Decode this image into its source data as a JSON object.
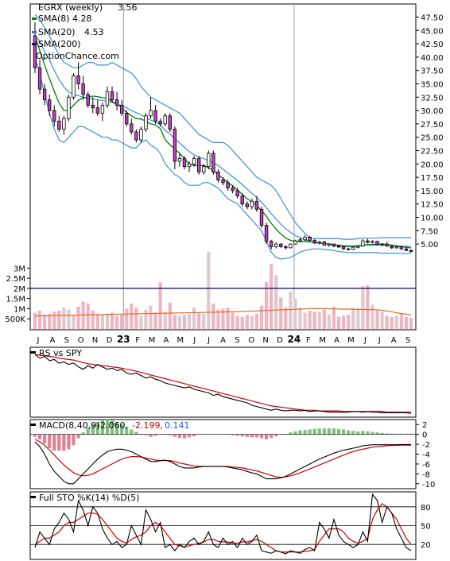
{
  "chart_data": {
    "type": "candlestick",
    "symbol_label": "EGRX (weekly)",
    "last_price": "3.56",
    "watermark": "OptionChance.com",
    "legend": [
      {
        "name": "SMA(8)",
        "value": "4.28",
        "color": "#008000"
      },
      {
        "name": "SMA(20)",
        "value": "4.53",
        "color": "#1e7fd2"
      },
      {
        "name": "SMA(200)",
        "value": "",
        "color": "#000080"
      }
    ],
    "price_axis": {
      "ylim": [
        1.6,
        49.5
      ],
      "ticks": [
        "47.50",
        "45.00",
        "42.50",
        "40.00",
        "37.50",
        "35.00",
        "32.50",
        "30.00",
        "27.50",
        "25.00",
        "22.50",
        "20.00",
        "17.50",
        "15.00",
        "12.50",
        "10.00",
        "7.50",
        "5.00"
      ]
    },
    "volume_axis": {
      "ylim": [
        0,
        3600000
      ],
      "ticks": [
        {
          "label": "3M",
          "value": 3000000
        },
        {
          "label": "2.5M",
          "value": 2500000
        },
        {
          "label": "2M",
          "value": 2000000
        },
        {
          "label": "1.5M",
          "value": 1500000
        },
        {
          "label": "1M",
          "value": 1000000
        },
        {
          "label": "500K",
          "value": 500000
        }
      ]
    },
    "x_axis": {
      "months": [
        "J",
        "A",
        "S",
        "O",
        "N",
        "D",
        "23",
        "F",
        "M",
        "A",
        "M",
        "J",
        "J",
        "A",
        "S",
        "O",
        "N",
        "D",
        "24",
        "F",
        "M",
        "A",
        "M",
        "J",
        "J",
        "A",
        "S"
      ],
      "year_labels": [
        "23",
        "24"
      ]
    },
    "price_series": [
      [
        44.0,
        46.5,
        41.5,
        42.5,
        41.5,
        42.0,
        38.0,
        39.0,
        39.0,
        40.5,
        37.0,
        38.0
      ],
      [
        38.0,
        39.5,
        35.0,
        36.0,
        36.0,
        37.0,
        33.0,
        34.0
      ],
      [
        34.0,
        35.0,
        31.0,
        32.0
      ],
      [
        32.0,
        33.0,
        29.0,
        30.0
      ],
      [
        30.0,
        31.0,
        27.0,
        28.0
      ],
      [
        28.0,
        29.0,
        26.0,
        26.5
      ],
      [
        26.5,
        29.0,
        25.5,
        28.5
      ],
      [
        28.5,
        33.0,
        28.0,
        32.5
      ],
      [
        32.5,
        37.0,
        32.0,
        36.5
      ],
      [
        36.5,
        39.0,
        34.0,
        35.0
      ],
      [
        35.0,
        36.5,
        32.0,
        33.0
      ],
      [
        33.0,
        33.5,
        30.5,
        31.0
      ],
      [
        31.0,
        32.5,
        29.5,
        30.5
      ],
      [
        30.5,
        32.0,
        29.0,
        29.5
      ],
      [
        29.5,
        31.5,
        28.0,
        31.0
      ],
      [
        31.0,
        34.5,
        30.5,
        33.5
      ],
      [
        33.5,
        34.5,
        31.5,
        32.0
      ],
      [
        32.0,
        33.5,
        30.0,
        31.0
      ],
      [
        31.0,
        32.0,
        29.0,
        29.5
      ],
      [
        29.5,
        30.0,
        27.0,
        27.5
      ],
      [
        27.5,
        28.5,
        25.5,
        26.0
      ],
      [
        26.0,
        26.5,
        24.0,
        24.5
      ],
      [
        24.5,
        27.0,
        24.0,
        26.5
      ],
      [
        26.5,
        29.5,
        26.0,
        29.0
      ],
      [
        29.0,
        32.5,
        28.5,
        30.0
      ],
      [
        30.0,
        31.0,
        27.5,
        28.0
      ],
      [
        28.0,
        28.5,
        27.0,
        27.5
      ],
      [
        27.5,
        29.5,
        27.0,
        29.0
      ],
      [
        29.0,
        29.5,
        26.0,
        26.5
      ],
      [
        26.5,
        27.0,
        19.0,
        20.5
      ],
      [
        20.5,
        22.0,
        19.5,
        21.0
      ],
      [
        21.0,
        21.5,
        19.0,
        19.5
      ],
      [
        19.5,
        20.5,
        18.5,
        20.0
      ],
      [
        20.0,
        21.5,
        19.5,
        21.0
      ],
      [
        21.0,
        21.5,
        18.0,
        18.5
      ],
      [
        18.5,
        20.0,
        18.0,
        19.5
      ],
      [
        19.5,
        22.5,
        19.0,
        22.0
      ],
      [
        22.0,
        22.5,
        18.0,
        18.5
      ],
      [
        18.5,
        19.0,
        16.5,
        17.0
      ],
      [
        17.0,
        17.5,
        16.0,
        16.5
      ],
      [
        16.5,
        17.0,
        15.0,
        15.5
      ],
      [
        15.5,
        16.0,
        14.5,
        15.0
      ],
      [
        15.0,
        15.5,
        13.5,
        14.0
      ],
      [
        14.0,
        14.5,
        12.0,
        12.5
      ],
      [
        12.5,
        13.0,
        11.5,
        12.0
      ],
      [
        12.0,
        13.5,
        11.5,
        13.0
      ],
      [
        13.0,
        14.0,
        11.0,
        11.5
      ],
      [
        11.5,
        12.0,
        8.0,
        8.5
      ],
      [
        8.5,
        9.0,
        5.0,
        5.5
      ],
      [
        5.5,
        5.8,
        4.0,
        4.5
      ],
      [
        4.5,
        5.3,
        4.2,
        5.0
      ],
      [
        5.0,
        5.2,
        4.3,
        4.5
      ],
      [
        4.5,
        4.8,
        4.0,
        4.3
      ],
      [
        4.3,
        5.1,
        4.2,
        5.0
      ],
      [
        5.0,
        5.8,
        4.9,
        5.6
      ],
      [
        5.6,
        6.2,
        5.3,
        5.8
      ],
      [
        5.8,
        6.7,
        5.6,
        6.3
      ],
      [
        6.3,
        6.5,
        5.6,
        5.7
      ],
      [
        5.7,
        5.9,
        5.0,
        5.2
      ],
      [
        5.2,
        5.6,
        4.9,
        5.4
      ],
      [
        5.4,
        5.6,
        4.7,
        4.8
      ],
      [
        4.8,
        5.2,
        4.5,
        5.0
      ],
      [
        5.0,
        5.1,
        4.4,
        4.6
      ],
      [
        4.6,
        4.9,
        4.3,
        4.5
      ],
      [
        4.5,
        4.7,
        3.9,
        4.1
      ],
      [
        4.1,
        4.3,
        3.8,
        4.0
      ],
      [
        4.0,
        4.6,
        3.9,
        4.4
      ],
      [
        4.4,
        4.8,
        4.2,
        4.6
      ],
      [
        4.6,
        5.9,
        4.5,
        5.6
      ],
      [
        5.6,
        6.0,
        5.1,
        5.3
      ],
      [
        5.3,
        5.7,
        5.1,
        5.5
      ],
      [
        5.5,
        5.6,
        4.8,
        4.9
      ],
      [
        4.9,
        5.2,
        4.6,
        5.0
      ],
      [
        5.0,
        5.4,
        4.5,
        4.6
      ],
      [
        4.6,
        4.8,
        4.1,
        4.3
      ],
      [
        4.3,
        4.7,
        4.1,
        4.5
      ],
      [
        4.5,
        4.6,
        3.9,
        4.1
      ],
      [
        4.1,
        4.4,
        3.7,
        3.8
      ],
      [
        3.8,
        4.0,
        3.5,
        3.56
      ]
    ],
    "sma8": [
      44.0,
      41.2,
      38.5,
      36.0,
      33.6,
      31.4,
      30.0,
      30.0,
      31.0,
      31.9,
      32.4,
      32.5,
      32.7,
      32.6,
      32.4,
      32.3,
      31.7,
      31.2,
      30.5,
      29.7,
      29.0,
      28.5,
      28.4,
      28.0,
      27.5,
      27.3,
      26.6,
      24.5,
      23.6,
      22.8,
      22.0,
      21.0,
      20.0,
      19.7,
      19.7,
      19.7,
      19.3,
      18.7,
      18.0,
      17.3,
      16.5,
      15.9,
      15.1,
      14.3,
      13.5,
      12.9,
      12.2,
      11.3,
      10.2,
      8.9,
      7.8,
      6.9,
      6.1,
      5.7,
      5.5,
      5.5,
      5.5,
      5.4,
      5.3,
      5.2,
      5.1,
      5.0,
      4.9,
      4.7,
      4.6,
      4.5,
      4.5,
      4.6,
      4.8,
      4.9,
      4.9,
      5.0,
      5.0,
      4.9,
      4.8,
      4.6,
      4.5,
      4.4,
      4.28
    ],
    "sma20": [
      44.0,
      43.0,
      41.0,
      39.5,
      37.5,
      35.8,
      34.4,
      33.5,
      33.0,
      32.8,
      32.5,
      32.3,
      32.2,
      32.0,
      31.9,
      31.7,
      31.5,
      31.2,
      30.9,
      30.5,
      30.0,
      29.6,
      29.2,
      28.7,
      28.2,
      27.9,
      27.3,
      26.3,
      25.6,
      24.7,
      23.9,
      23.1,
      22.3,
      21.7,
      21.3,
      21.0,
      20.6,
      20.2,
      19.7,
      19.0,
      18.3,
      17.6,
      16.9,
      16.1,
      15.3,
      14.5,
      13.7,
      12.8,
      11.8,
      10.7,
      9.7,
      8.7,
      7.9,
      7.2,
      6.6,
      6.2,
      5.8,
      5.5,
      5.3,
      5.2,
      5.1,
      5.0,
      4.9,
      4.8,
      4.7,
      4.7,
      4.7,
      4.7,
      4.8,
      4.8,
      4.8,
      4.8,
      4.8,
      4.8,
      4.8,
      4.7,
      4.6,
      4.6,
      4.53
    ],
    "bb_upper": [
      48.0,
      47.0,
      45.5,
      44.0,
      42.0,
      40.5,
      39.0,
      38.5,
      38.0,
      38.0,
      38.5,
      39.0,
      39.0,
      38.5,
      38.5,
      38.5,
      39.0,
      38.5,
      38.0,
      37.5,
      37.0,
      36.0,
      34.5,
      33.5,
      32.5,
      32.0,
      31.5,
      31.0,
      30.5,
      30.0,
      29.5,
      28.5,
      27.5,
      26.5,
      25.5,
      25.0,
      24.5,
      24.0,
      24.0,
      24.0,
      23.5,
      22.5,
      21.5,
      20.5,
      19.5,
      18.5,
      17.5,
      17.0,
      16.5,
      16.0,
      15.0,
      13.5,
      12.0,
      10.5,
      9.0,
      8.0,
      7.0,
      6.2,
      6.0,
      6.0,
      6.0,
      6.0,
      6.0,
      6.0,
      5.9,
      5.9,
      5.9,
      6.0,
      6.1,
      6.1,
      6.1,
      6.1,
      6.2,
      6.2,
      6.2,
      6.2,
      6.2,
      6.2,
      6.2
    ],
    "bb_lower": [
      40.0,
      37.0,
      33.0,
      29.5,
      26.5,
      24.5,
      24.0,
      25.0,
      26.0,
      27.0,
      27.0,
      26.5,
      26.0,
      25.5,
      25.0,
      25.0,
      24.5,
      24.5,
      24.0,
      23.5,
      23.0,
      23.0,
      24.0,
      24.5,
      23.5,
      23.0,
      22.0,
      20.0,
      19.0,
      18.0,
      17.5,
      16.5,
      16.0,
      16.0,
      16.0,
      16.5,
      16.5,
      16.0,
      15.5,
      14.5,
      13.5,
      13.0,
      12.5,
      11.5,
      10.5,
      9.5,
      8.5,
      7.5,
      5.5,
      3.5,
      2.5,
      2.2,
      2.3,
      2.5,
      3.0,
      3.5,
      3.8,
      4.0,
      4.1,
      4.1,
      4.0,
      3.9,
      3.8,
      3.6,
      3.5,
      3.4,
      3.4,
      3.4,
      3.4,
      3.4,
      3.4,
      3.4,
      3.3,
      3.3,
      3.3,
      3.3,
      3.2,
      3.2,
      3.2
    ],
    "volume": [
      800,
      900,
      700,
      750,
      850,
      900,
      1050,
      950,
      700,
      1100,
      1350,
      1250,
      900,
      750,
      700,
      750,
      800,
      650,
      700,
      1000,
      1250,
      1050,
      650,
      950,
      1150,
      800,
      2300,
      850,
      1300,
      700,
      650,
      700,
      750,
      1050,
      800,
      750,
      3800,
      1250,
      950,
      1000,
      1050,
      800,
      650,
      600,
      700,
      650,
      750,
      1150,
      2300,
      3200,
      2650,
      1550,
      1050,
      1850,
      1500,
      1050,
      800,
      900,
      850,
      850,
      950,
      700,
      1100,
      600,
      650,
      700,
      1050,
      1000,
      2100,
      2150,
      1200,
      900,
      850,
      650,
      600,
      650,
      750,
      600,
      550
    ],
    "volume_unit": 1000,
    "volume_average": [
      640,
      645,
      650,
      655,
      660,
      665,
      670,
      675,
      680,
      685,
      690,
      695,
      700,
      705,
      710,
      715,
      720,
      725,
      730,
      735,
      740,
      745,
      750,
      755,
      760,
      765,
      770,
      775,
      780,
      785,
      790,
      795,
      800,
      805,
      810,
      815,
      820,
      825,
      830,
      835,
      840,
      845,
      850,
      860,
      870,
      880,
      890,
      900,
      910,
      920,
      930,
      940,
      950,
      960,
      970,
      980,
      990,
      1000,
      1000,
      1000,
      1000,
      995,
      990,
      985,
      980,
      975,
      970,
      965,
      960,
      955,
      950,
      940,
      920,
      890,
      850,
      800,
      760,
      730,
      700
    ],
    "ma_line_2m": 2000000,
    "rs_panel": {
      "label": "RS vs SPY",
      "rs": [
        96,
        90,
        93,
        86,
        88,
        82,
        84,
        80,
        82,
        76,
        72,
        78,
        74,
        80,
        76,
        72,
        74,
        70,
        72,
        66,
        64,
        66,
        62,
        58,
        60,
        56,
        54,
        50,
        48,
        46,
        44,
        42,
        44,
        40,
        38,
        36,
        34,
        30,
        32,
        28,
        26,
        24,
        22,
        20,
        18,
        14,
        12,
        10,
        8,
        6,
        8,
        6,
        5,
        6,
        6,
        5,
        6,
        4,
        5,
        5,
        4,
        3,
        3,
        3,
        3,
        3,
        4,
        4,
        3,
        4,
        3,
        3,
        2,
        2,
        2,
        2,
        2,
        2,
        1
      ],
      "ma": [
        96,
        95,
        94,
        93,
        92,
        90,
        89,
        88,
        87,
        85,
        83,
        81,
        80,
        79,
        78,
        77,
        76,
        75,
        74,
        72,
        71,
        69,
        67,
        65,
        63,
        61,
        59,
        57,
        55,
        53,
        51,
        49,
        47,
        45,
        43,
        41,
        39,
        37,
        35,
        33,
        31,
        29,
        27,
        25,
        23,
        21,
        19,
        17,
        15,
        13,
        12,
        11,
        10,
        9,
        8,
        7,
        6,
        6,
        6,
        5,
        5,
        5,
        5,
        5,
        4,
        4,
        4,
        4,
        4,
        4,
        4,
        4,
        4,
        3,
        3,
        3,
        3,
        3,
        3
      ],
      "ylim": [
        0,
        100
      ]
    },
    "macd_panel": {
      "label": "MACD(8,40,9)",
      "macd_value": "-2.060,",
      "signal_value": "-2.199,",
      "hist_value": "0.141",
      "yticks": [
        2,
        0,
        -2,
        -4,
        -6,
        -8,
        -10
      ],
      "ylim": [
        -11,
        3
      ],
      "macd": [
        -1.5,
        -2.5,
        -4.0,
        -6.0,
        -7.5,
        -8.5,
        -9.5,
        -10.0,
        -10.0,
        -9.0,
        -8.0,
        -7.0,
        -6.0,
        -5.0,
        -4.2,
        -3.5,
        -3.2,
        -3.0,
        -3.0,
        -3.2,
        -3.5,
        -4.0,
        -4.5,
        -5.0,
        -5.5,
        -5.5,
        -5.3,
        -5.2,
        -5.5,
        -6.0,
        -6.5,
        -6.8,
        -6.8,
        -6.8,
        -6.6,
        -6.5,
        -6.5,
        -6.5,
        -6.5,
        -6.5,
        -6.6,
        -6.8,
        -7.0,
        -7.2,
        -7.5,
        -7.8,
        -8.0,
        -8.5,
        -9.0,
        -9.0,
        -9.0,
        -8.8,
        -8.5,
        -8.0,
        -7.5,
        -7.0,
        -6.5,
        -6.0,
        -5.5,
        -5.0,
        -4.6,
        -4.2,
        -3.8,
        -3.5,
        -3.2,
        -3.0,
        -2.8,
        -2.6,
        -2.3,
        -2.2,
        -2.1,
        -2.1,
        -2.1,
        -2.1,
        -2.1,
        -2.1,
        -2.06,
        -2.06,
        -2.06
      ],
      "signal": [
        -1.0,
        -1.5,
        -2.2,
        -3.2,
        -4.2,
        -5.2,
        -6.2,
        -7.0,
        -7.8,
        -8.2,
        -8.4,
        -8.3,
        -8.0,
        -7.5,
        -7.0,
        -6.5,
        -6.0,
        -5.5,
        -5.0,
        -4.7,
        -4.5,
        -4.5,
        -4.6,
        -4.8,
        -5.0,
        -5.2,
        -5.3,
        -5.3,
        -5.3,
        -5.5,
        -5.8,
        -6.0,
        -6.2,
        -6.4,
        -6.5,
        -6.5,
        -6.5,
        -6.5,
        -6.5,
        -6.5,
        -6.5,
        -6.6,
        -6.7,
        -6.8,
        -7.0,
        -7.2,
        -7.4,
        -7.7,
        -8.0,
        -8.3,
        -8.6,
        -8.7,
        -8.6,
        -8.4,
        -8.1,
        -7.8,
        -7.4,
        -7.0,
        -6.6,
        -6.2,
        -5.8,
        -5.4,
        -5.0,
        -4.6,
        -4.2,
        -3.8,
        -3.5,
        -3.2,
        -3.0,
        -2.8,
        -2.6,
        -2.5,
        -2.4,
        -2.3,
        -2.25,
        -2.22,
        -2.2,
        -2.2,
        -2.199
      ]
    },
    "sto_panel": {
      "label": "Full STO %K(14) %D(5)",
      "yticks": [
        80,
        50,
        20
      ],
      "ylim": [
        0,
        100
      ],
      "k": [
        15,
        40,
        30,
        20,
        45,
        55,
        70,
        60,
        40,
        90,
        75,
        50,
        80,
        70,
        45,
        30,
        20,
        25,
        15,
        20,
        50,
        35,
        20,
        75,
        60,
        40,
        55,
        15,
        20,
        10,
        20,
        15,
        25,
        30,
        20,
        25,
        40,
        20,
        15,
        30,
        20,
        25,
        15,
        30,
        20,
        25,
        35,
        10,
        8,
        6,
        10,
        8,
        5,
        10,
        8,
        6,
        12,
        15,
        10,
        55,
        45,
        30,
        60,
        35,
        25,
        20,
        15,
        20,
        40,
        25,
        100,
        90,
        55,
        80,
        70,
        45,
        30,
        15,
        10
      ],
      "d": [
        20,
        25,
        30,
        30,
        35,
        40,
        50,
        55,
        55,
        60,
        65,
        70,
        70,
        68,
        60,
        50,
        40,
        30,
        25,
        22,
        28,
        32,
        35,
        40,
        50,
        55,
        50,
        40,
        30,
        20,
        18,
        16,
        18,
        20,
        22,
        24,
        28,
        28,
        25,
        24,
        24,
        22,
        22,
        24,
        24,
        26,
        28,
        25,
        20,
        15,
        10,
        8,
        8,
        8,
        8,
        8,
        9,
        10,
        12,
        25,
        35,
        45,
        45,
        45,
        40,
        30,
        25,
        22,
        25,
        30,
        60,
        75,
        85,
        80,
        70,
        60,
        45,
        30,
        20
      ]
    }
  }
}
